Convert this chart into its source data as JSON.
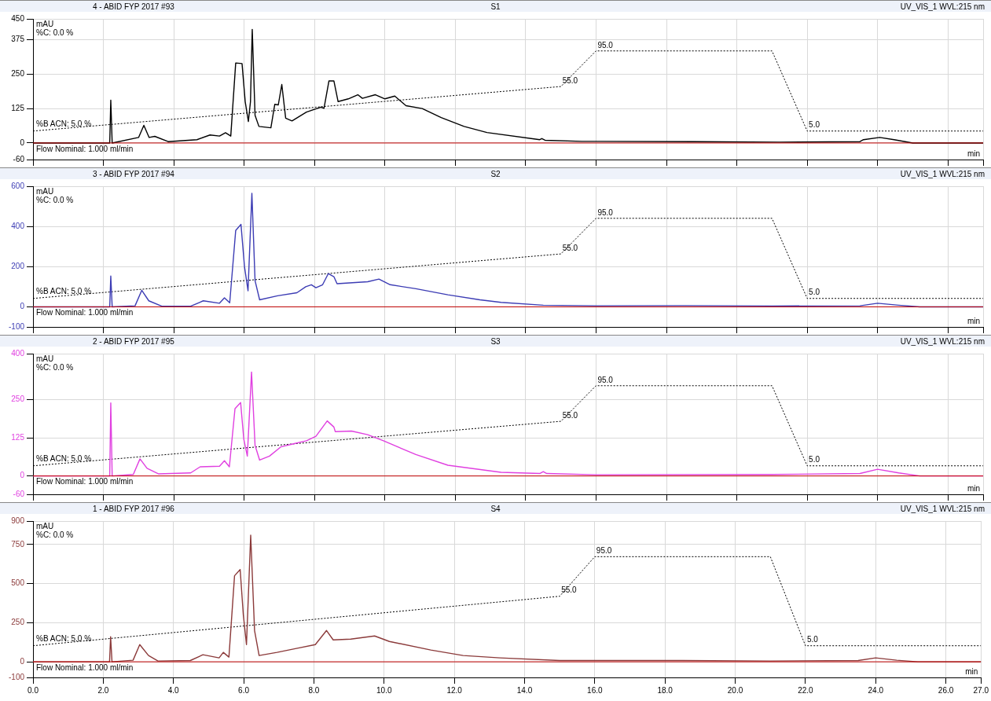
{
  "chart_data": [
    {
      "type": "line",
      "title": "4 - ABID FYP 2017 #93",
      "subtitle": "S1",
      "annotations": [
        "UV_VIS_1 WVL:215 nm",
        "%C: 0.0 %",
        "%B ACN: 5.0 %",
        "Flow Nominal: 1.000 ml/min"
      ],
      "xlabel": "min",
      "ylabel": "mAU",
      "xlim": [
        0,
        27
      ],
      "xticks": [
        0,
        2,
        4,
        6,
        8,
        10,
        12,
        14,
        16,
        18,
        20,
        22,
        24,
        26,
        27
      ],
      "ylim": [
        -60,
        450
      ],
      "yticks": [
        -60,
        0,
        125,
        250,
        375,
        450
      ],
      "y2lim": [
        -27,
        131
      ],
      "grid": true,
      "tick_labels": "y",
      "ref_lines": [
        {
          "axis": "y",
          "value": 0,
          "color": "#c00000"
        }
      ],
      "series": [
        {
          "color": "#000000",
          "x": [
            0,
            2.18,
            2.21,
            2.25,
            3.0,
            3.15,
            3.3,
            3.46,
            3.84,
            4.66,
            5.03,
            5.3,
            5.47,
            5.62,
            5.76,
            5.94,
            6.03,
            6.12,
            6.18,
            6.23,
            6.31,
            6.42,
            6.76,
            6.87,
            6.97,
            7.07,
            7.18,
            7.36,
            7.77,
            8.18,
            8.27,
            8.41,
            8.55,
            8.67,
            8.96,
            9.23,
            9.36,
            9.73,
            10.0,
            10.28,
            10.6,
            11.06,
            11.6,
            12.25,
            12.9,
            14.4,
            14.46,
            14.55,
            15.6,
            18.77,
            21.2,
            23.5,
            23.6,
            24.06,
            24.47,
            25.0,
            27
          ],
          "values": [
            0,
            0,
            155,
            0,
            20,
            64,
            20,
            24,
            5,
            12,
            29,
            25,
            37,
            25,
            290,
            288,
            150,
            78,
            150,
            412,
            100,
            60,
            55,
            140,
            138,
            212,
            90,
            80,
            112,
            130,
            126,
            225,
            225,
            150,
            160,
            175,
            162,
            175,
            160,
            170,
            135,
            125,
            92,
            60,
            38,
            12,
            16,
            10,
            6,
            5,
            3,
            5,
            12,
            20,
            12,
            0,
            0
          ]
        },
        {
          "axis": "y2",
          "color": "#000000",
          "line_style": "dotted",
          "x": [
            0,
            15,
            16,
            21,
            22,
            27
          ],
          "values": [
            5,
            55,
            95,
            95,
            5,
            5
          ],
          "value_labels": [
            null,
            "55.0",
            "95.0",
            null,
            "5.0",
            null
          ]
        }
      ]
    },
    {
      "type": "line",
      "title": "3 - ABID FYP 2017 #94",
      "subtitle": "S2",
      "annotations": [
        "UV_VIS_1 WVL:215 nm",
        "%C: 0.0 %",
        "%B ACN: 5.0 %",
        "Flow Nominal: 1.000 ml/min"
      ],
      "xlabel": "min",
      "ylabel": "mAU",
      "xlim": [
        0,
        27
      ],
      "xticks": [
        0,
        2,
        4,
        6,
        8,
        10,
        12,
        14,
        16,
        18,
        20,
        22,
        24,
        26,
        27
      ],
      "ylim": [
        -100,
        600
      ],
      "yticks": [
        -100,
        0,
        200,
        400,
        600
      ],
      "y2lim": [
        -27,
        131
      ],
      "grid": true,
      "tick_labels": "y",
      "ref_lines": [
        {
          "axis": "y",
          "value": 0,
          "color": "#c00000"
        }
      ],
      "series": [
        {
          "color": "#3c3cb4",
          "x": [
            0,
            2.18,
            2.21,
            2.25,
            2.9,
            3.09,
            3.29,
            3.66,
            4.48,
            4.84,
            5.3,
            5.44,
            5.59,
            5.76,
            5.91,
            6.01,
            6.11,
            6.22,
            6.31,
            6.44,
            6.95,
            7.5,
            7.75,
            7.91,
            8.04,
            8.23,
            8.39,
            8.55,
            8.64,
            9.51,
            9.83,
            10.15,
            10.88,
            11.79,
            12.7,
            13.3,
            14.5,
            16,
            18.5,
            21,
            23.5,
            24.0,
            24.6,
            25.2,
            27
          ],
          "values": [
            0,
            0,
            153,
            0,
            5,
            82,
            30,
            3,
            3,
            30,
            18,
            45,
            20,
            380,
            410,
            200,
            80,
            565,
            130,
            35,
            55,
            70,
            100,
            110,
            95,
            110,
            165,
            150,
            115,
            125,
            138,
            110,
            90,
            60,
            35,
            22,
            8,
            5,
            6,
            4,
            5,
            18,
            8,
            0,
            0
          ]
        },
        {
          "axis": "y2",
          "color": "#000000",
          "line_style": "dotted",
          "x": [
            0,
            15,
            16,
            21,
            22,
            27
          ],
          "values": [
            5,
            55,
            95,
            95,
            5,
            5
          ],
          "value_labels": [
            null,
            "55.0",
            "95.0",
            null,
            "5.0",
            null
          ]
        }
      ]
    },
    {
      "type": "line",
      "title": "2 - ABID FYP 2017 #95",
      "subtitle": "S3",
      "annotations": [
        "UV_VIS_1 WVL:215 nm",
        "%C: 0.0 %",
        "%B ACN: 5.0 %",
        "Flow Nominal: 1.000 ml/min"
      ],
      "xlabel": "min",
      "ylabel": "mAU",
      "xlim": [
        0,
        27
      ],
      "xticks": [
        0,
        2,
        4,
        6,
        8,
        10,
        12,
        14,
        16,
        18,
        20,
        22,
        24,
        26,
        27
      ],
      "ylim": [
        -60,
        400
      ],
      "yticks": [
        -60,
        0,
        125,
        250,
        400
      ],
      "y2lim": [
        -27,
        131
      ],
      "grid": true,
      "tick_labels": "y",
      "ref_lines": [
        {
          "axis": "y",
          "value": 0,
          "color": "#c00000"
        }
      ],
      "series": [
        {
          "color": "#e040e0",
          "x": [
            0,
            2.18,
            2.21,
            2.25,
            2.85,
            3.04,
            3.24,
            3.56,
            4.48,
            4.75,
            5.3,
            5.44,
            5.58,
            5.74,
            5.9,
            5.99,
            6.09,
            6.21,
            6.31,
            6.44,
            6.72,
            7.04,
            7.4,
            7.77,
            8.04,
            8.36,
            8.55,
            8.59,
            9.05,
            9.51,
            9.96,
            10.88,
            11.79,
            13.3,
            14.4,
            14.5,
            14.6,
            16,
            21,
            23.5,
            24.0,
            24.6,
            25.2,
            27
          ],
          "values": [
            0,
            0,
            239,
            0,
            5,
            56,
            25,
            7,
            10,
            30,
            32,
            50,
            30,
            220,
            240,
            120,
            65,
            340,
            100,
            52,
            65,
            95,
            105,
            115,
            130,
            180,
            160,
            145,
            147,
            135,
            115,
            70,
            35,
            12,
            8,
            14,
            8,
            4,
            5,
            8,
            22,
            10,
            0,
            0
          ]
        },
        {
          "axis": "y2",
          "color": "#000000",
          "line_style": "dotted",
          "x": [
            0,
            15,
            16,
            21,
            22,
            27
          ],
          "values": [
            5,
            55,
            95,
            95,
            5,
            5
          ],
          "value_labels": [
            null,
            "55.0",
            "95.0",
            null,
            "5.0",
            null
          ]
        }
      ]
    },
    {
      "type": "line",
      "title": "1 - ABID FYP 2017 #96",
      "subtitle": "S4",
      "annotations": [
        "UV_VIS_1 WVL:215 nm",
        "%C: 0.0 %",
        "%B ACN: 5.0 %",
        "Flow Nominal: 1.000 ml/min"
      ],
      "xlabel": "min",
      "ylabel": "mAU",
      "xlim": [
        0,
        27
      ],
      "xticks": [
        {
          "value": 0,
          "label": "0.0"
        },
        {
          "value": 2,
          "label": "2.0"
        },
        {
          "value": 4,
          "label": "4.0"
        },
        {
          "value": 6,
          "label": "6.0"
        },
        {
          "value": 8,
          "label": "8.0"
        },
        {
          "value": 10,
          "label": "10.0"
        },
        {
          "value": 12,
          "label": "12.0"
        },
        {
          "value": 14,
          "label": "14.0"
        },
        {
          "value": 16,
          "label": "16.0"
        },
        {
          "value": 18,
          "label": "18.0"
        },
        {
          "value": 20,
          "label": "20.0"
        },
        {
          "value": 22,
          "label": "22.0"
        },
        {
          "value": 24,
          "label": "24.0"
        },
        {
          "value": 26,
          "label": "26.0"
        },
        {
          "value": 27,
          "label": "27.0"
        }
      ],
      "ylim": [
        -100,
        900
      ],
      "yticks": [
        -100,
        0,
        250,
        500,
        750,
        900
      ],
      "y2lim": [
        -27,
        131
      ],
      "grid": true,
      "ref_lines": [
        {
          "axis": "y",
          "value": 0,
          "color": "#c00000"
        }
      ],
      "series": [
        {
          "color": "#8b3a3a",
          "x": [
            0,
            2.18,
            2.21,
            2.25,
            2.85,
            3.04,
            3.29,
            3.56,
            4.48,
            4.84,
            5.3,
            5.42,
            5.58,
            5.74,
            5.9,
            5.99,
            6.08,
            6.2,
            6.31,
            6.44,
            6.95,
            7.5,
            8.04,
            8.36,
            8.55,
            9.05,
            9.73,
            10.15,
            11.33,
            12.25,
            13.3,
            15,
            18.5,
            21,
            23.5,
            24.0,
            24.6,
            25.2,
            27
          ],
          "values": [
            0,
            0,
            160,
            0,
            10,
            110,
            40,
            5,
            8,
            45,
            25,
            60,
            30,
            550,
            590,
            300,
            110,
            810,
            200,
            40,
            60,
            85,
            110,
            200,
            140,
            145,
            165,
            130,
            75,
            40,
            25,
            8,
            8,
            5,
            8,
            25,
            10,
            0,
            0
          ]
        },
        {
          "axis": "y2",
          "color": "#000000",
          "line_style": "dotted",
          "x": [
            0,
            15,
            16,
            21,
            22,
            27
          ],
          "values": [
            5,
            55,
            95,
            95,
            5,
            5
          ],
          "value_labels": [
            null,
            "55.0",
            "95.0",
            null,
            "5.0",
            null
          ]
        }
      ]
    }
  ]
}
